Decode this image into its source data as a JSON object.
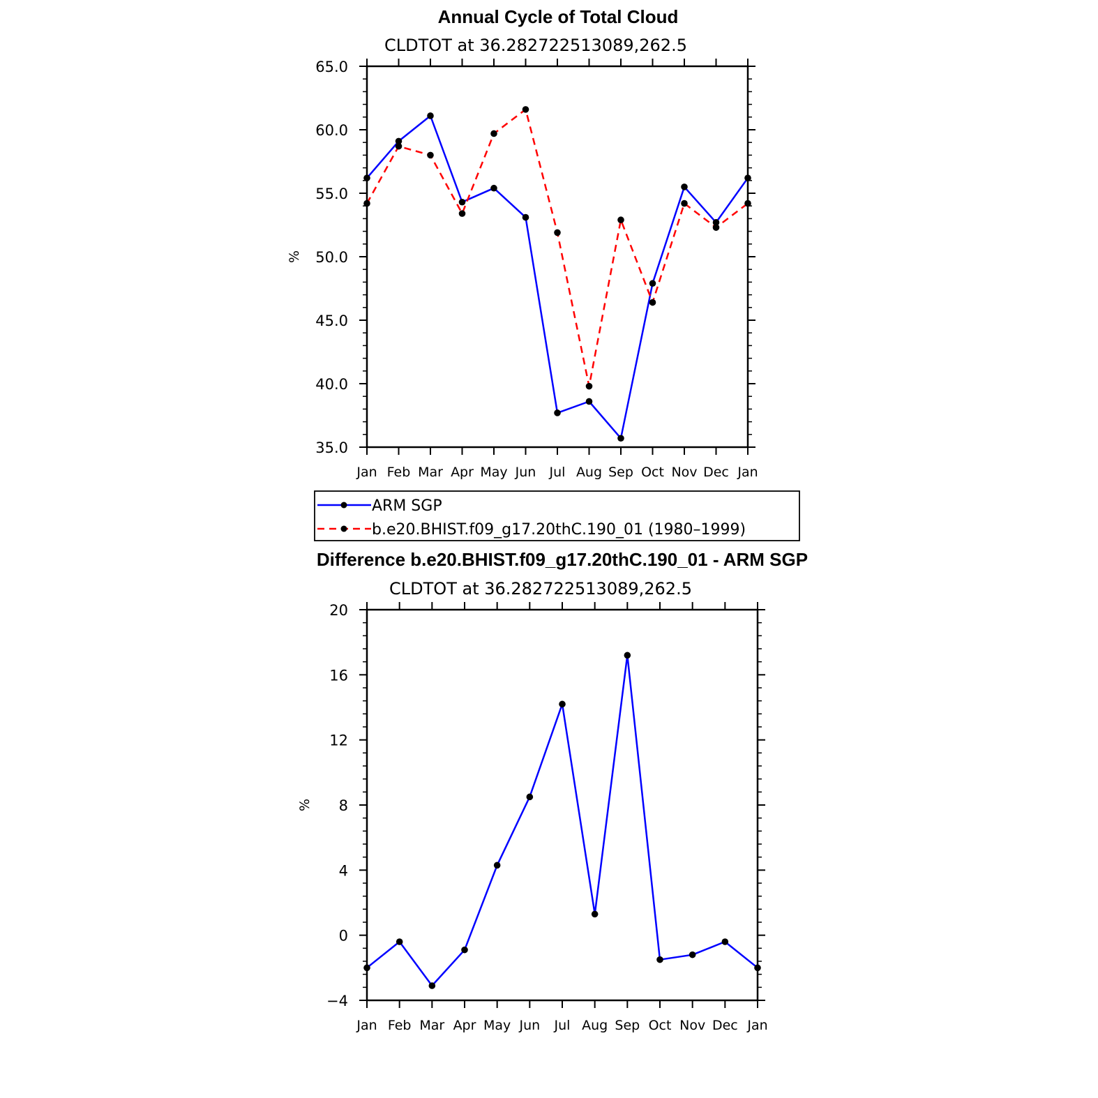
{
  "chart_data": [
    {
      "type": "line",
      "title": "Annual Cycle of Total Cloud",
      "subtitle": "CLDTOT at 36.282722513089,262.5",
      "ylabel": "%",
      "xlabel": "",
      "categories": [
        "Jan",
        "Feb",
        "Mar",
        "Apr",
        "May",
        "Jun",
        "Jul",
        "Aug",
        "Sep",
        "Oct",
        "Nov",
        "Dec",
        "Jan"
      ],
      "ylim": [
        35.0,
        65.0
      ],
      "yticks": [
        "35.0",
        "40.0",
        "45.0",
        "50.0",
        "55.0",
        "60.0",
        "65.0"
      ],
      "grid": false,
      "legend_position": "bottom",
      "series": [
        {
          "name": "ARM SGP",
          "color": "#0000ff",
          "dash": "solid",
          "values": [
            56.2,
            59.1,
            61.1,
            54.3,
            55.4,
            53.1,
            37.7,
            38.6,
            35.7,
            47.9,
            55.5,
            52.7,
            56.2
          ]
        },
        {
          "name": "b.e20.BHIST.f09_g17.20thC.190_01 (1980–1999)",
          "color": "#ff0000",
          "dash": "dashed",
          "values": [
            54.2,
            58.7,
            58.0,
            53.4,
            59.7,
            61.6,
            51.9,
            39.8,
            52.9,
            46.4,
            54.2,
            52.3,
            54.2
          ]
        }
      ]
    },
    {
      "type": "line",
      "title": "Difference b.e20.BHIST.f09_g17.20thC.190_01 - ARM SGP",
      "subtitle": "CLDTOT at 36.282722513089,262.5",
      "ylabel": "%",
      "xlabel": "",
      "categories": [
        "Jan",
        "Feb",
        "Mar",
        "Apr",
        "May",
        "Jun",
        "Jul",
        "Aug",
        "Sep",
        "Oct",
        "Nov",
        "Dec",
        "Jan"
      ],
      "ylim": [
        -4,
        20
      ],
      "yticks": [
        "−4",
        "0",
        "4",
        "8",
        "12",
        "16",
        "20"
      ],
      "grid": false,
      "series": [
        {
          "color": "#0000ff",
          "dash": "solid",
          "values": [
            -2.0,
            -0.4,
            -3.1,
            -0.9,
            4.3,
            8.5,
            14.2,
            1.3,
            17.2,
            -1.5,
            -1.2,
            -0.4,
            -2.0
          ]
        }
      ]
    }
  ]
}
